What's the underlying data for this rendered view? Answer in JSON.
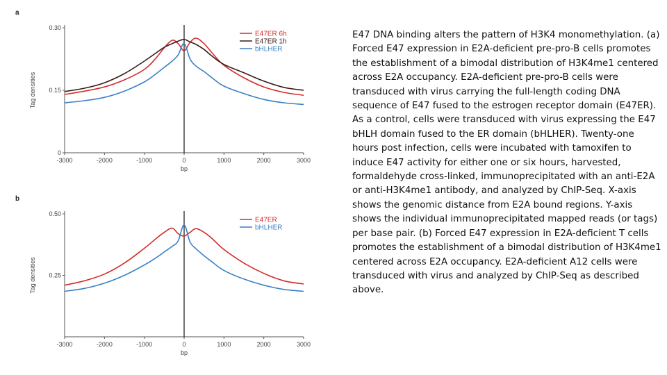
{
  "caption": "E47 DNA binding alters the pattern of H3K4 monomethylation. (a) Forced E47 expression in E2A-deficient pre-pro-B cells promotes the establishment of a bimodal distribution of H3K4me1 centered across E2A occupancy. E2A-deficient pre-pro-B cells were transduced with virus carrying the full-length coding DNA sequence of E47 fused to the estrogen receptor domain (E47ER). As a control, cells were transduced with virus expressing the E47 bHLH domain fused to the ER domain (bHLHER). Twenty-one hours post infection, cells were incubated with tamoxifen to induce E47 activity for either one or six hours, harvested, formaldehyde cross-linked, immunoprecipitated with an anti-E2A or anti-H3K4me1 antibody, and analyzed by ChIP-Seq. X-axis shows the genomic distance from E2A bound regions. Y-axis shows the individual immunoprecipitated mapped reads (or tags) per base pair. (b) Forced E47 expression in E2A-deficient T cells promotes the establishment of a bimodal distribution of H3K4me1 centered across E2A occupancy. E2A-deficient A12 cells were transduced with virus and analyzed by ChIP-Seq as described above.",
  "chart_data": [
    {
      "panel": "a",
      "type": "line",
      "xlabel": "bp",
      "ylabel": "Tag densities",
      "xlim": [
        -3000,
        3000
      ],
      "ylim": [
        0,
        0.3
      ],
      "xticks": [
        -3000,
        -2000,
        -1000,
        0,
        1000,
        2000,
        3000
      ],
      "xtick_labels": [
        "-3000",
        "-2000",
        "-1000",
        "0",
        "1000",
        "2000",
        "3000"
      ],
      "yticks": [
        0,
        0.15,
        0.3
      ],
      "ytick_labels": [
        "0",
        "0.15",
        "0.30"
      ],
      "legend_position": "top-right",
      "series": [
        {
          "name": "E47ER 6h",
          "color": "#d42a2a",
          "x": [
            -3000,
            -2500,
            -2000,
            -1500,
            -1000,
            -700,
            -500,
            -300,
            -150,
            0,
            150,
            300,
            500,
            700,
            1000,
            1500,
            2000,
            2500,
            3000
          ],
          "y": [
            0.14,
            0.148,
            0.158,
            0.175,
            0.2,
            0.228,
            0.252,
            0.27,
            0.262,
            0.245,
            0.265,
            0.275,
            0.262,
            0.24,
            0.21,
            0.18,
            0.158,
            0.145,
            0.138
          ]
        },
        {
          "name": "E47ER 1h",
          "color": "#3a1a1a",
          "x": [
            -3000,
            -2500,
            -2000,
            -1500,
            -1000,
            -700,
            -500,
            -300,
            -150,
            0,
            150,
            300,
            500,
            700,
            1000,
            1500,
            2000,
            2500,
            3000
          ],
          "y": [
            0.147,
            0.155,
            0.168,
            0.19,
            0.22,
            0.24,
            0.253,
            0.262,
            0.268,
            0.272,
            0.266,
            0.26,
            0.248,
            0.232,
            0.212,
            0.192,
            0.172,
            0.157,
            0.15
          ]
        },
        {
          "name": "bHLHER",
          "color": "#3b7fc6",
          "x": [
            -3000,
            -2500,
            -2000,
            -1500,
            -1000,
            -700,
            -500,
            -300,
            -150,
            0,
            150,
            300,
            500,
            700,
            1000,
            1500,
            2000,
            2500,
            3000
          ],
          "y": [
            0.12,
            0.125,
            0.133,
            0.148,
            0.17,
            0.19,
            0.205,
            0.22,
            0.235,
            0.262,
            0.225,
            0.208,
            0.195,
            0.18,
            0.16,
            0.142,
            0.128,
            0.12,
            0.116
          ]
        }
      ]
    },
    {
      "panel": "b",
      "type": "line",
      "xlabel": "bp",
      "ylabel": "Tag densities",
      "xlim": [
        -3000,
        3000
      ],
      "ylim": [
        0,
        0.5
      ],
      "xticks": [
        -3000,
        -2000,
        -1000,
        0,
        1000,
        2000,
        3000
      ],
      "xtick_labels": [
        "-3000",
        "-2000",
        "-1000",
        "0",
        "1000",
        "2000",
        "3000"
      ],
      "yticks": [
        0.25,
        0.5
      ],
      "ytick_labels": [
        "0.25",
        "0.50"
      ],
      "legend_position": "top-right",
      "series": [
        {
          "name": "E47ER",
          "color": "#d42a2a",
          "x": [
            -3000,
            -2500,
            -2000,
            -1500,
            -1000,
            -700,
            -500,
            -300,
            -150,
            0,
            150,
            300,
            500,
            700,
            1000,
            1500,
            2000,
            2500,
            3000
          ],
          "y": [
            0.21,
            0.228,
            0.255,
            0.3,
            0.36,
            0.4,
            0.425,
            0.442,
            0.42,
            0.41,
            0.425,
            0.44,
            0.425,
            0.4,
            0.355,
            0.3,
            0.258,
            0.228,
            0.215
          ]
        },
        {
          "name": "bHLHER",
          "color": "#3b7fc6",
          "x": [
            -3000,
            -2500,
            -2000,
            -1500,
            -1000,
            -700,
            -500,
            -300,
            -150,
            0,
            150,
            300,
            500,
            700,
            1000,
            1500,
            2000,
            2500,
            3000
          ],
          "y": [
            0.185,
            0.197,
            0.218,
            0.25,
            0.292,
            0.322,
            0.345,
            0.368,
            0.39,
            0.455,
            0.385,
            0.358,
            0.33,
            0.305,
            0.27,
            0.235,
            0.21,
            0.193,
            0.185
          ]
        }
      ]
    }
  ]
}
